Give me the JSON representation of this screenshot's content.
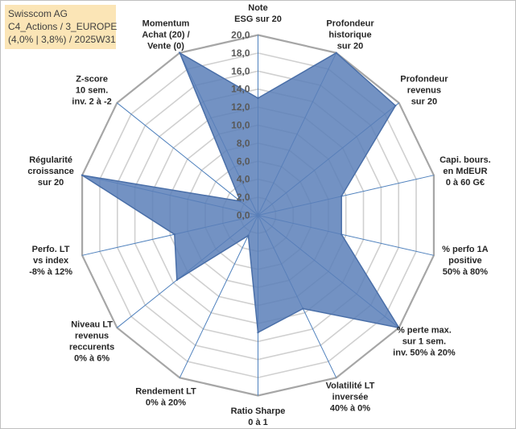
{
  "info_box": {
    "line1": "Swisscom AG",
    "line2": "C4_Actions / 3_EUROPE",
    "line3": "(4,0% | 3,8%) / 2025W31"
  },
  "chart_data": {
    "type": "radar",
    "title": "",
    "rmin": 0,
    "rmax": 20,
    "tick_step": 2,
    "tick_labels": [
      "0,0",
      "2,0",
      "4,0",
      "6,0",
      "8,0",
      "10,0",
      "12,0",
      "14,0",
      "16,0",
      "18,0",
      "20,0"
    ],
    "axes": [
      {
        "label": [
          "Note",
          "ESG sur 20"
        ],
        "anchor": "middle"
      },
      {
        "label": [
          "Profondeur",
          "historique",
          "sur 20"
        ],
        "anchor": "middle"
      },
      {
        "label": [
          "Profondeur",
          "revenus",
          "sur 20"
        ],
        "anchor": "middle"
      },
      {
        "label": [
          "Capi. bours.",
          "en MdEUR",
          "0 à 60 G€"
        ],
        "anchor": "middle"
      },
      {
        "label": [
          "% perfo 1A",
          "positive",
          "50% à 80%"
        ],
        "anchor": "middle"
      },
      {
        "label": [
          "% perte max.",
          "sur 1 sem.",
          "inv. 50% à 20%"
        ],
        "anchor": "middle"
      },
      {
        "label": [
          "Volatilité LT",
          "inversée",
          "40% à 0%"
        ],
        "anchor": "middle"
      },
      {
        "label": [
          "Ratio Sharpe",
          "0 à 1"
        ],
        "anchor": "middle"
      },
      {
        "label": [
          "Rendement LT",
          "0% à 20%"
        ],
        "anchor": "middle"
      },
      {
        "label": [
          "Niveau LT",
          "revenus",
          "reccurents",
          "0% à 6%"
        ],
        "anchor": "middle"
      },
      {
        "label": [
          "Perfo. LT",
          "vs index",
          "-8% à 12%"
        ],
        "anchor": "middle"
      },
      {
        "label": [
          "Régularité",
          "croissance",
          "sur 20"
        ],
        "anchor": "middle"
      },
      {
        "label": [
          "Z-score",
          "10 sem.",
          "inv. 2 à -2"
        ],
        "anchor": "middle"
      },
      {
        "label": [
          "Momentum",
          "Achat (20) /",
          "Vente (0)"
        ],
        "anchor": "middle"
      }
    ],
    "series": [
      {
        "values": [
          13.0,
          20.0,
          19.5,
          9.5,
          9.5,
          20.0,
          11.5,
          13.0,
          2.5,
          11.5,
          9.5,
          20.0,
          2.5,
          20.0
        ]
      }
    ],
    "colors": {
      "fill": "#5b7fb8",
      "fill_opacity": 0.85,
      "stroke": "#4a6fa8",
      "grid": "#d0d0d0",
      "outer_grid": "#a6a6a6",
      "spoke": "#4f81bd"
    },
    "grid": true,
    "legend": "none"
  }
}
